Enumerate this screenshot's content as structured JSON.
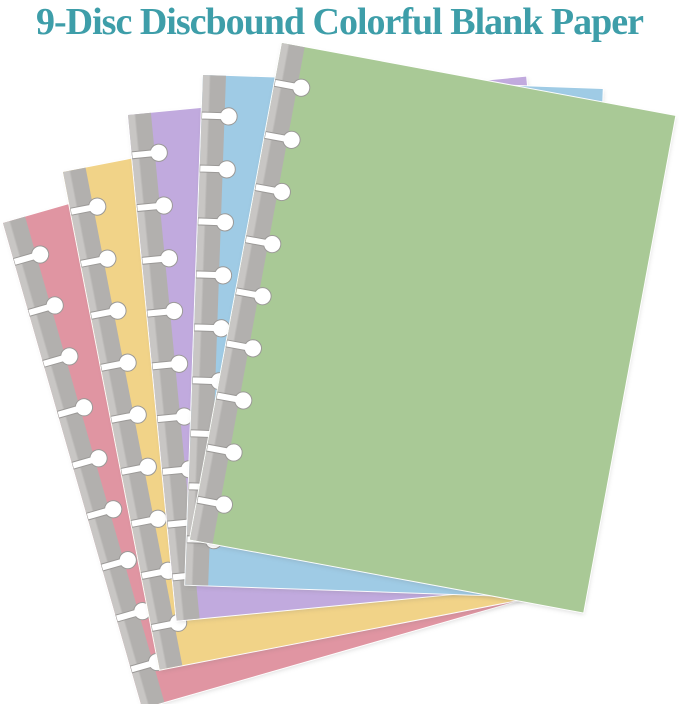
{
  "title": {
    "text": "9-Disc Discbound Colorful Blank Paper",
    "color_hex": "#3e9ea9"
  },
  "background_color": "#ffffff",
  "product": {
    "disc_count": 9,
    "sheets": [
      {
        "name": "pink",
        "color_hex": "#e095a2"
      },
      {
        "name": "yellow",
        "color_hex": "#f1d388"
      },
      {
        "name": "purple",
        "color_hex": "#c1aade"
      },
      {
        "name": "blue",
        "color_hex": "#9fcbe5"
      },
      {
        "name": "green",
        "color_hex": "#a9c996"
      }
    ],
    "binding_strip": {
      "base_color_hex": "#b2b0ae",
      "highlight_color_hex": "#c8c6c4"
    },
    "punch_hole": {
      "fill_hex": "#ffffff",
      "outline_hex": "#9b9997"
    }
  }
}
